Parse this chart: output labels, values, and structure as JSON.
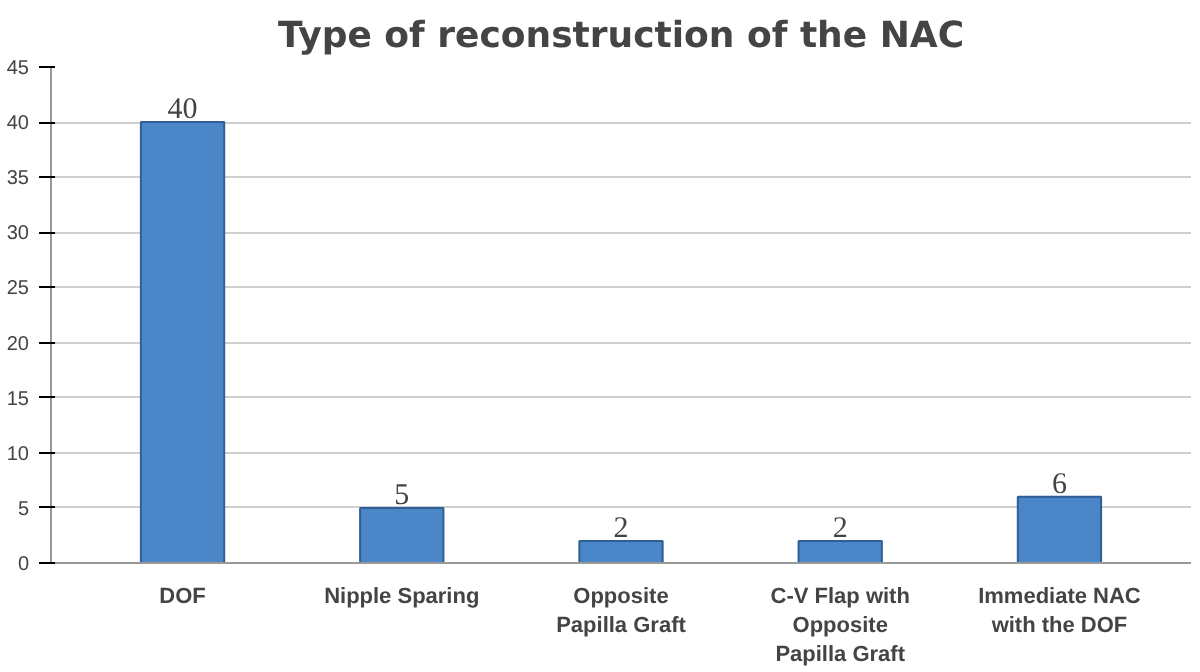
{
  "chart_data": {
    "type": "bar",
    "title": "Type of reconstruction of the NAC",
    "categories": [
      "DOF",
      "Nipple Sparing",
      "Opposite Papilla Graft",
      "C-V Flap with Opposite Papilla Graft",
      "Immediate NAC with the DOF"
    ],
    "values": [
      40,
      5,
      2,
      2,
      6
    ],
    "color": "#4a86c8",
    "value_labels": [
      "40",
      "5",
      "2",
      "2",
      "6"
    ],
    "ylim": [
      0,
      45
    ],
    "yticks": [
      0,
      5,
      10,
      15,
      20,
      25,
      30,
      35,
      40,
      45
    ],
    "grid": "y"
  }
}
